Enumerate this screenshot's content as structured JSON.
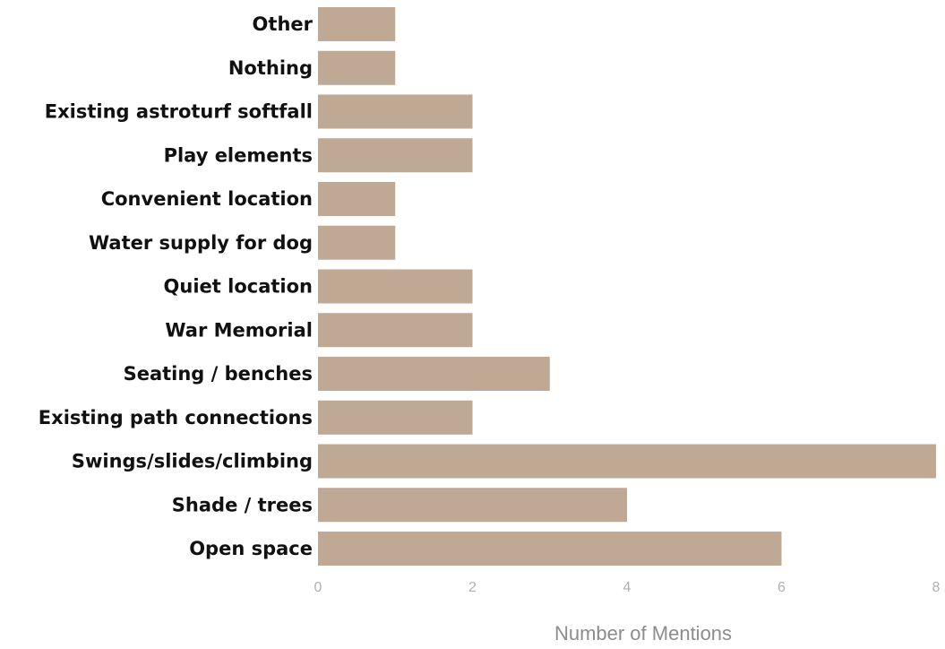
{
  "chart_data": {
    "type": "bar",
    "orientation": "horizontal",
    "categories": [
      "Open space",
      "Shade / trees",
      "Swings/slides/climbing",
      "Existing path connections",
      "Seating  / benches",
      "War Memorial",
      "Quiet location",
      "Water supply for dog",
      "Convenient location",
      "Play elements",
      "Existing astroturf softfall",
      "Nothing",
      "Other"
    ],
    "values": [
      6,
      4,
      8,
      2,
      3,
      2,
      2,
      1,
      1,
      2,
      2,
      1,
      1
    ],
    "xlabel": "Number of Mentions",
    "ylabel": "",
    "title": "",
    "xlim": [
      0,
      8
    ],
    "xticks": [
      "0",
      "2",
      "4",
      "6",
      "8"
    ],
    "bar_color": "#bfa995",
    "grid": false,
    "legend": "none"
  }
}
